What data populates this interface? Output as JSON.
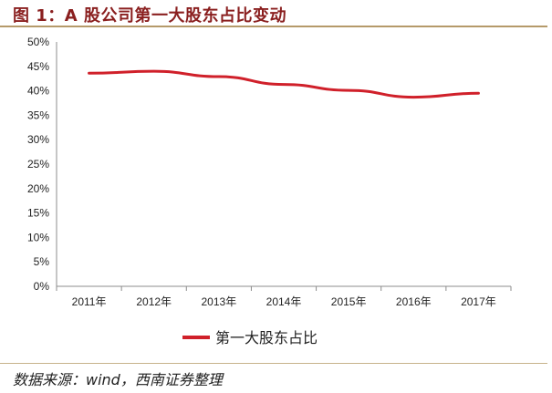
{
  "figure": {
    "title": "图 1：A 股公司第一大股东占比变动",
    "source": "数据来源：wind，西南证券整理"
  },
  "colors": {
    "series": "#d0202a",
    "title": "#8a1f1f",
    "rule": "#b59a6a",
    "axis": "#8c8c8c"
  },
  "chart_data": {
    "type": "line",
    "categories": [
      "2011年",
      "2012年",
      "2013年",
      "2014年",
      "2015年",
      "2016年",
      "2017年"
    ],
    "series": [
      {
        "name": "第一大股东占比",
        "values": [
          0.436,
          0.44,
          0.429,
          0.413,
          0.401,
          0.387,
          0.395
        ]
      }
    ],
    "y_ticks": [
      "0%",
      "5%",
      "10%",
      "15%",
      "20%",
      "25%",
      "30%",
      "35%",
      "40%",
      "45%",
      "50%"
    ],
    "ylim": [
      0,
      0.5
    ],
    "grid": false,
    "legend_position": "bottom-center"
  }
}
